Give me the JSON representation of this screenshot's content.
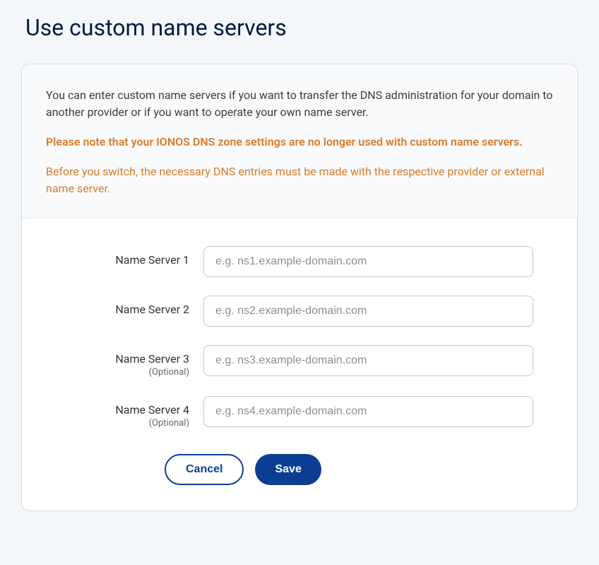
{
  "page_title": "Use custom name servers",
  "info": {
    "description": "You can enter custom name servers if you want to transfer the DNS administration for your domain to another provider or if you want to operate your own name server.",
    "warning_bold": "Please note that your IONOS DNS zone settings are no longer used with custom name servers.",
    "warning_note": "Before you switch, the necessary DNS entries must be made with the respective provider or external name server."
  },
  "form": {
    "optional_label": "(Optional)",
    "fields": [
      {
        "label": "Name Server 1",
        "placeholder": "e.g. ns1.example-domain.com",
        "optional": false
      },
      {
        "label": "Name Server 2",
        "placeholder": "e.g. ns2.example-domain.com",
        "optional": false
      },
      {
        "label": "Name Server 3",
        "placeholder": "e.g. ns3.example-domain.com",
        "optional": true
      },
      {
        "label": "Name Server 4",
        "placeholder": "e.g. ns4.example-domain.com",
        "optional": true
      }
    ]
  },
  "buttons": {
    "cancel": "Cancel",
    "save": "Save"
  },
  "colors": {
    "page_bg": "#f4f7fa",
    "card_bg": "#ffffff",
    "card_border": "#d6dbe1",
    "info_bg": "#f9fafb",
    "title_color": "#001b41",
    "text_color": "#3c3c3c",
    "warning_color": "#d97b29",
    "input_border": "#c4cad2",
    "placeholder_color": "#8a8f96",
    "primary_btn_bg": "#0b3e91",
    "primary_btn_text": "#ffffff"
  }
}
